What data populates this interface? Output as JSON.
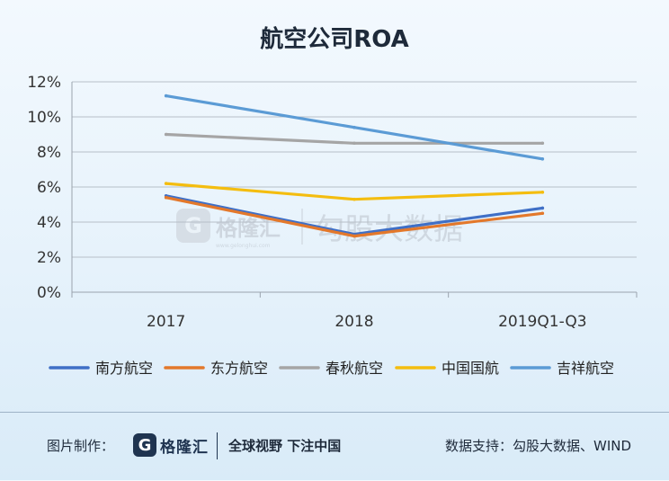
{
  "chart_data": {
    "type": "line",
    "title": "航空公司ROA",
    "categories": [
      "2017",
      "2018",
      "2019Q1-Q3"
    ],
    "y_ticks": [
      "0%",
      "2%",
      "4%",
      "6%",
      "8%",
      "10%",
      "12%"
    ],
    "ylim": [
      0,
      12
    ],
    "grid": true,
    "legend_position": "bottom",
    "series": [
      {
        "name": "南方航空",
        "values": [
          5.5,
          3.3,
          4.8
        ],
        "color": "#3f6fc6"
      },
      {
        "name": "东方航空",
        "values": [
          5.4,
          3.2,
          4.5
        ],
        "color": "#e3782b"
      },
      {
        "name": "春秋航空",
        "values": [
          9.0,
          8.5,
          8.5
        ],
        "color": "#a5a5a5"
      },
      {
        "name": "中国国航",
        "values": [
          6.2,
          5.3,
          5.7
        ],
        "color": "#f4bd0f"
      },
      {
        "name": "吉祥航空",
        "values": [
          11.2,
          9.4,
          7.6
        ],
        "color": "#5b9bd5"
      }
    ]
  },
  "watermark": {
    "logo_text": "格隆汇",
    "logo_sub": "www.gelonghui.com",
    "brand": "勾股大数据"
  },
  "footer": {
    "credit": "图片制作：",
    "logo_mark": "G",
    "logo_text": "格隆汇",
    "slogan": "全球视野 下注中国",
    "source": "数据支持：勾股大数据、WIND"
  }
}
